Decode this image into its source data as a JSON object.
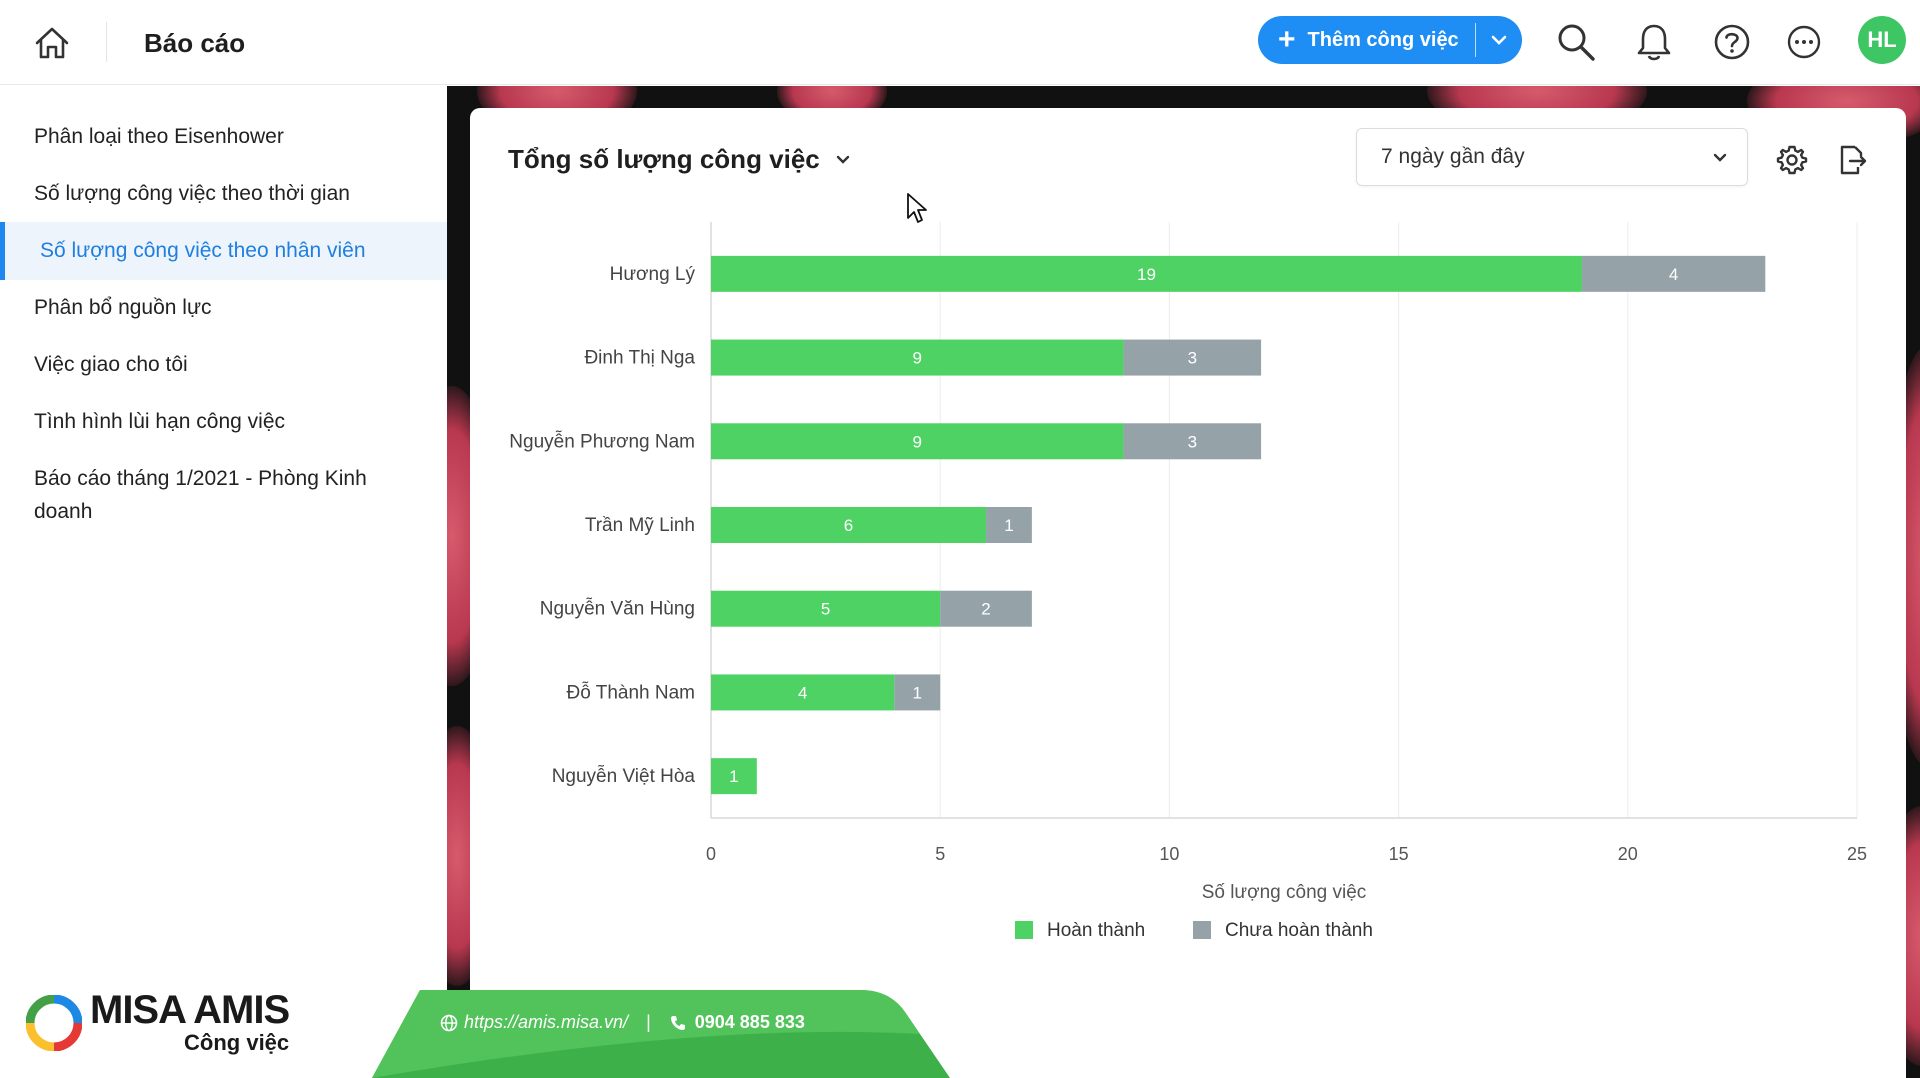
{
  "header": {
    "title": "Báo cáo",
    "add_task_label": "Thêm công việc",
    "avatar_initials": "HL",
    "accent_color": "#1e8ef5"
  },
  "sidebar": {
    "items": [
      {
        "label": "Phân loại theo Eisenhower",
        "active": false
      },
      {
        "label": "Số lượng công việc theo thời gian",
        "active": false
      },
      {
        "label": "Số lượng công việc theo nhân viên",
        "active": true
      },
      {
        "label": "Phân bổ nguồn lực",
        "active": false
      },
      {
        "label": "Việc giao cho tôi",
        "active": false
      },
      {
        "label": "Tình hình lùi hạn công việc",
        "active": false
      },
      {
        "label": "Báo cáo tháng 1/2021 - Phòng Kinh doanh",
        "active": false
      }
    ]
  },
  "report": {
    "title": "Tổng số lượng công việc",
    "range_selected": "7 ngày gần đây"
  },
  "chart_data": {
    "type": "bar",
    "orientation": "horizontal",
    "stacked": true,
    "categories": [
      "Hương Lý",
      "Đinh Thị Nga",
      "Nguyễn Phương Nam",
      "Trần Mỹ Linh",
      "Nguyễn Văn Hùng",
      "Đỗ Thành Nam",
      "Nguyễn Việt Hòa"
    ],
    "series": [
      {
        "name": "Hoàn thành",
        "color": "#4fd264",
        "values": [
          19,
          9,
          9,
          6,
          5,
          4,
          1
        ]
      },
      {
        "name": "Chưa hoàn thành",
        "color": "#95a3a9",
        "values": [
          4,
          3,
          3,
          1,
          2,
          1,
          0
        ]
      }
    ],
    "xlabel": "Số lượng công việc",
    "xlim": [
      0,
      25
    ],
    "xticks": [
      0,
      5,
      10,
      15,
      20,
      25
    ],
    "grid": true,
    "legend_position": "bottom"
  },
  "footer": {
    "brand_name": "MISA AMIS",
    "brand_sub": "Công việc",
    "url": "https://amis.misa.vn/",
    "phone": "0904 885 833"
  }
}
